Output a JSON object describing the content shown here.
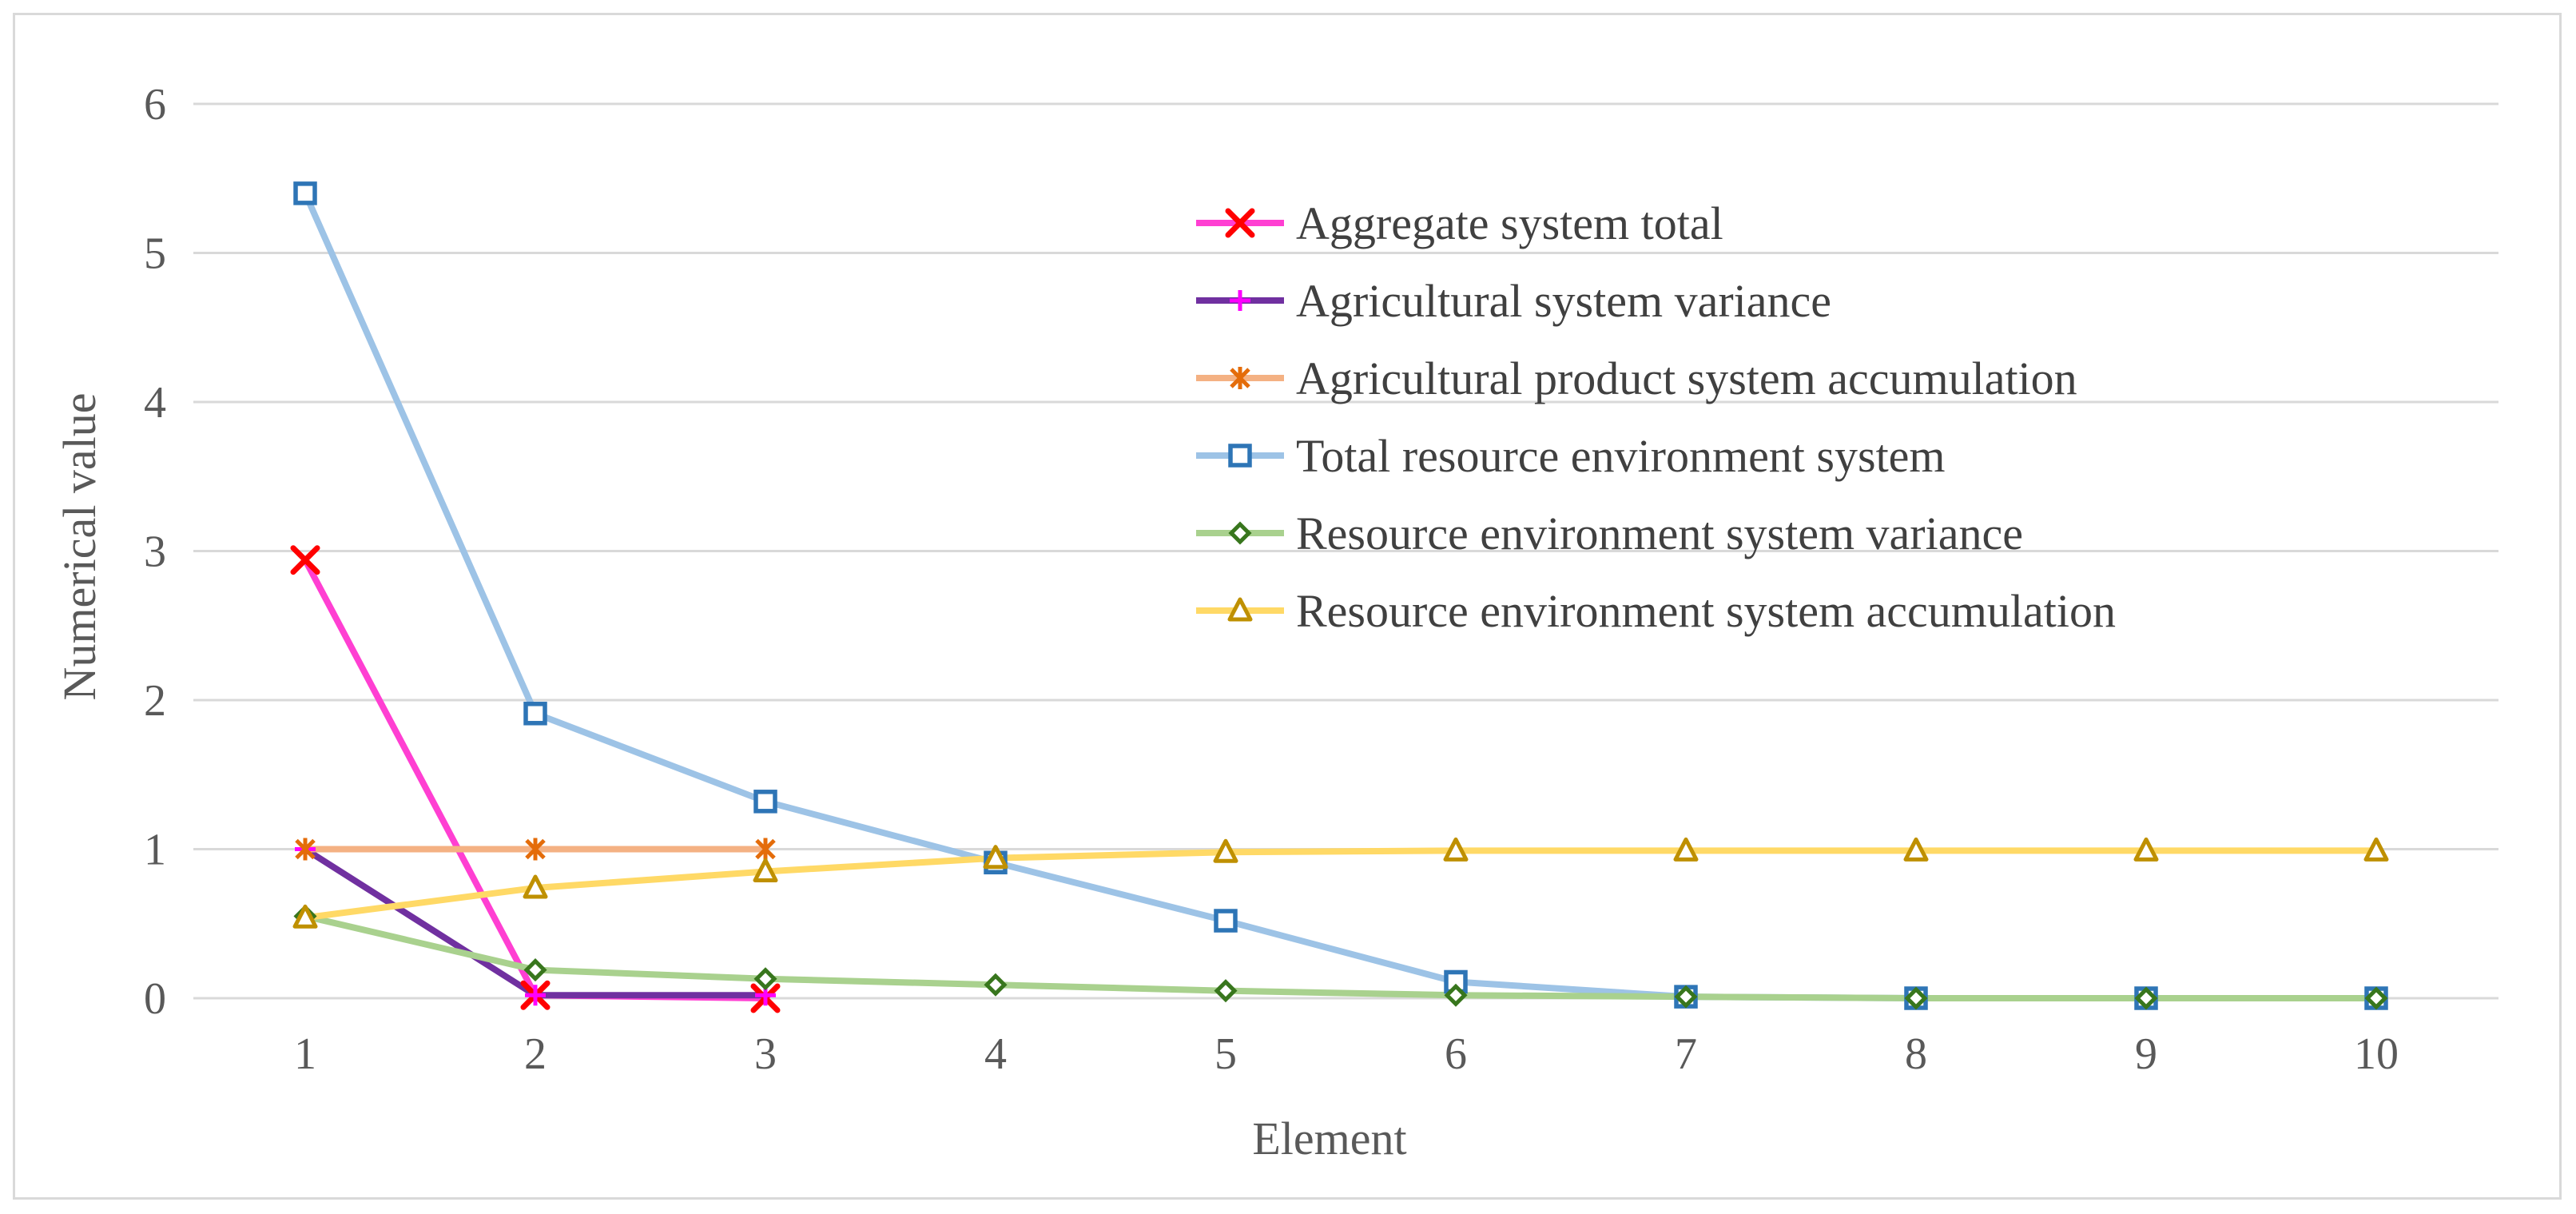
{
  "chart_data": {
    "type": "line",
    "title": "",
    "xlabel": "Element",
    "ylabel": "Numerical value",
    "categories": [
      "1",
      "2",
      "3",
      "4",
      "5",
      "6",
      "7",
      "8",
      "9",
      "10"
    ],
    "x": [
      1,
      2,
      3,
      4,
      5,
      6,
      7,
      8,
      9,
      10
    ],
    "ylim": [
      0,
      6
    ],
    "yticks": [
      0,
      1,
      2,
      3,
      4,
      5,
      6
    ],
    "ytick_labels": [
      "0",
      "1",
      "2",
      "3",
      "4",
      "5",
      "6"
    ],
    "grid": "horizontal",
    "legend_position": "top-right",
    "series": [
      {
        "name": "Aggregate system total",
        "values": [
          2.94,
          0.02,
          0.0,
          null,
          null,
          null,
          null,
          null,
          null,
          null
        ],
        "color": "#ff3fd2",
        "marker": "x",
        "marker_color": "#ff0000"
      },
      {
        "name": "Agricultural system variance",
        "values": [
          1.0,
          0.02,
          0.02,
          null,
          null,
          null,
          null,
          null,
          null,
          null
        ],
        "color": "#7030a0",
        "marker": "plus",
        "marker_color": "#ff00ff"
      },
      {
        "name": "Agricultural product system accumulation",
        "values": [
          1.0,
          1.0,
          1.0,
          null,
          null,
          null,
          null,
          null,
          null,
          null
        ],
        "color": "#f4b183",
        "marker": "star",
        "marker_color": "#e46c0a"
      },
      {
        "name": "Total resource environment system",
        "values": [
          5.4,
          1.91,
          1.32,
          0.91,
          0.52,
          0.11,
          0.01,
          0.0,
          0.0,
          0.0
        ],
        "color": "#9dc3e6",
        "marker": "square",
        "marker_color": "#2e75b6"
      },
      {
        "name": "Resource environment system variance",
        "values": [
          0.55,
          0.19,
          0.13,
          0.09,
          0.05,
          0.02,
          0.01,
          0.0,
          0.0,
          0.0
        ],
        "color": "#a9d18e",
        "marker": "diamond",
        "marker_color": "#38761d"
      },
      {
        "name": "Resource environment system accumulation",
        "values": [
          0.54,
          0.74,
          0.85,
          0.94,
          0.98,
          0.99,
          0.99,
          0.99,
          0.99,
          0.99
        ],
        "color": "#ffd966",
        "marker": "triangle",
        "marker_color": "#bf9000"
      }
    ]
  },
  "colors": {
    "gridline": "#d9d9d9",
    "axis_text": "#595959",
    "legend_text": "#404040",
    "frame": "#d9d9d9"
  }
}
